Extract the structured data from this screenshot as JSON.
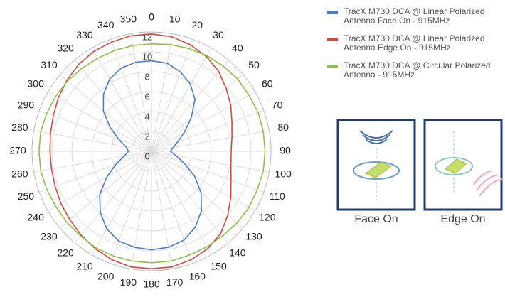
{
  "chart_data": {
    "type": "polar-line",
    "x": [
      0,
      10,
      20,
      30,
      40,
      50,
      60,
      70,
      80,
      90,
      100,
      110,
      120,
      130,
      140,
      150,
      160,
      170,
      180,
      190,
      200,
      210,
      220,
      230,
      240,
      250,
      260,
      270,
      280,
      290,
      300,
      310,
      320,
      330,
      340,
      350
    ],
    "rlim": [
      0,
      12
    ],
    "rticks": [
      0,
      2,
      4,
      6,
      8,
      10,
      12
    ],
    "grid": true,
    "series": [
      {
        "name": "TracX M730 DCA @ Linear Polarized Antenna Face On - 915MHz",
        "color": "#4a7cc7",
        "values": [
          9.1,
          9.0,
          8.5,
          7.8,
          6.8,
          5.2,
          3.8,
          2.8,
          2.2,
          1.9,
          2.5,
          3.5,
          5.0,
          6.5,
          7.8,
          8.8,
          9.5,
          9.8,
          9.9,
          9.8,
          9.6,
          9.0,
          8.0,
          6.8,
          5.2,
          3.8,
          2.8,
          2.3,
          2.6,
          3.5,
          4.8,
          6.3,
          7.5,
          8.4,
          8.9,
          9.1
        ]
      },
      {
        "name": "TracX M730 DCA @ Linear Polarized Antenna Edge On - 915MHz",
        "color": "#d04a46",
        "values": [
          11.8,
          11.7,
          11.4,
          11.0,
          10.5,
          9.8,
          9.2,
          8.6,
          8.2,
          8.0,
          8.1,
          8.5,
          9.2,
          10.0,
          10.8,
          11.3,
          11.6,
          11.8,
          11.8,
          11.8,
          11.6,
          11.3,
          11.0,
          10.7,
          10.5,
          10.3,
          10.2,
          10.2,
          10.3,
          10.5,
          10.8,
          11.1,
          11.4,
          11.6,
          11.7,
          11.8
        ]
      },
      {
        "name": "TracX M730 DCA @ Circular Polarized Antenna - 915MHz",
        "color": "#8fbf4a",
        "values": [
          10.8,
          10.9,
          11.0,
          11.1,
          11.2,
          11.3,
          11.3,
          11.4,
          11.4,
          11.4,
          11.4,
          11.3,
          11.3,
          11.2,
          11.1,
          11.1,
          11.1,
          11.2,
          11.2,
          11.2,
          11.2,
          11.2,
          11.1,
          11.1,
          11.1,
          11.2,
          11.3,
          11.3,
          11.3,
          11.2,
          11.1,
          11.0,
          10.9,
          10.8,
          10.8,
          10.8
        ]
      }
    ],
    "legend": "right"
  },
  "images": {
    "face_on": "Face On",
    "edge_on": "Edge On"
  }
}
